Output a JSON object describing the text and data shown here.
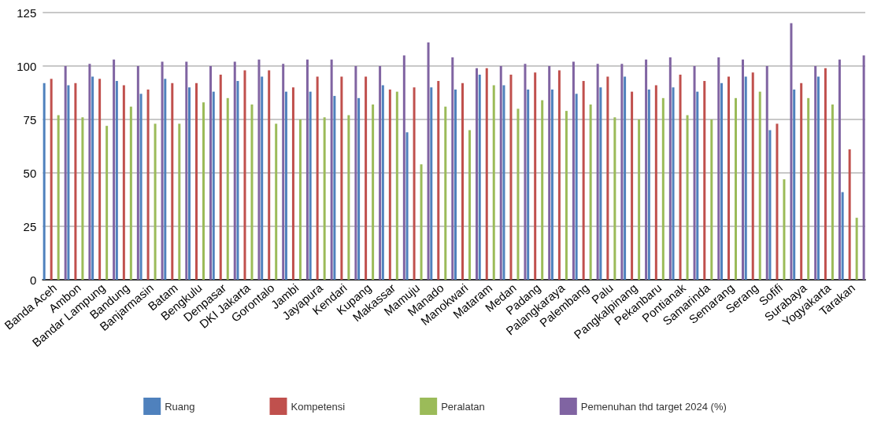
{
  "chart_data": {
    "type": "bar",
    "categories": [
      "Banda Aceh",
      "Ambon",
      "Bandar Lampung",
      "Bandung",
      "Banjarmasin",
      "Batam",
      "Bengkulu",
      "Denpasar",
      "DKI Jakarta",
      "Gorontalo",
      "Jambi",
      "Jayapura",
      "Kendari",
      "Kupang",
      "Makassar",
      "Mamuju",
      "Manado",
      "Manokwari",
      "Mataram",
      "Medan",
      "Padang",
      "Palangkaraya",
      "Palembang",
      "Palu",
      "Pangkalpinang",
      "Pekanbaru",
      "Pontianak",
      "Samarinda",
      "Semarang",
      "Serang",
      "Sofifi",
      "Surabaya",
      "Yogyakarta",
      "Tarakan"
    ],
    "series": [
      {
        "name": "Ruang",
        "color": "#4f81bd",
        "values": [
          92,
          91,
          95,
          93,
          87,
          94,
          90,
          88,
          93,
          95,
          88,
          88,
          86,
          85,
          91,
          69,
          90,
          89,
          96,
          91,
          89,
          89,
          87,
          90,
          95,
          89,
          90,
          88,
          92,
          95,
          70,
          89,
          95,
          41
        ]
      },
      {
        "name": "Kompetensi",
        "color": "#c0504d",
        "values": [
          94,
          92,
          94,
          91,
          89,
          92,
          92,
          96,
          98,
          98,
          90,
          95,
          95,
          95,
          89,
          90,
          93,
          92,
          99,
          96,
          97,
          98,
          93,
          95,
          88,
          91,
          96,
          93,
          95,
          97,
          73,
          92,
          99,
          61
        ]
      },
      {
        "name": "Peralatan",
        "color": "#9bbb59",
        "values": [
          77,
          76,
          72,
          81,
          73,
          73,
          83,
          85,
          82,
          73,
          75,
          76,
          77,
          82,
          88,
          54,
          81,
          70,
          91,
          80,
          84,
          79,
          82,
          76,
          75,
          85,
          77,
          75,
          85,
          88,
          47,
          85,
          82,
          29
        ]
      },
      {
        "name": "Pemenuhan thd target 2024 (%)",
        "color": "#8064a2",
        "values": [
          100,
          101,
          103,
          100,
          102,
          102,
          100,
          102,
          103,
          101,
          103,
          103,
          100,
          100,
          105,
          111,
          104,
          99,
          100,
          101,
          100,
          102,
          101,
          101,
          103,
          104,
          100,
          104,
          103,
          100,
          120,
          100,
          103,
          105
        ]
      }
    ],
    "ylim": [
      0,
      125
    ],
    "yticks": [
      0,
      25,
      50,
      75,
      100,
      125
    ],
    "grid": "y",
    "legend": "bottom"
  }
}
